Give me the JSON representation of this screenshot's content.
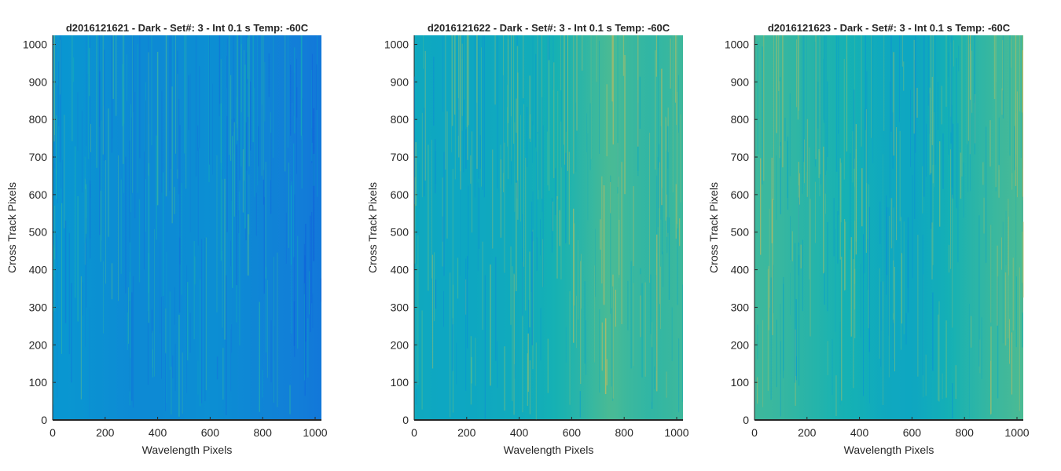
{
  "figure": {
    "background": "#ffffff"
  },
  "chart_data": [
    {
      "type": "heatmap",
      "title": "d2016121621 - Dark - Set#: 3 - Int 0.1 s Temp: -60C",
      "xlabel": "Wavelength Pixels",
      "ylabel": "Cross Track Pixels",
      "xlim": [
        0,
        1024
      ],
      "ylim": [
        0,
        1024
      ],
      "xticks": [
        0,
        200,
        400,
        600,
        800,
        1000
      ],
      "yticks": [
        0,
        100,
        200,
        300,
        400,
        500,
        600,
        700,
        800,
        900,
        1000
      ],
      "colormap": "parula",
      "column_profile": {
        "x": [
          0,
          100,
          200,
          300,
          400,
          500,
          600,
          700,
          800,
          900,
          1024
        ],
        "level": [
          0.38,
          0.37,
          0.35,
          0.33,
          0.33,
          0.34,
          0.35,
          0.33,
          0.31,
          0.29,
          0.26
        ]
      }
    },
    {
      "type": "heatmap",
      "title": "d2016121622 - Dark - Set#: 3 - Int 0.1 s Temp: -60C",
      "xlabel": "Wavelength Pixels",
      "ylabel": "Cross Track Pixels",
      "xlim": [
        0,
        1024
      ],
      "ylim": [
        0,
        1024
      ],
      "xticks": [
        0,
        200,
        400,
        600,
        800,
        1000
      ],
      "yticks": [
        0,
        100,
        200,
        300,
        400,
        500,
        600,
        700,
        800,
        900,
        1000
      ],
      "colormap": "parula",
      "column_profile": {
        "x": [
          0,
          100,
          200,
          300,
          400,
          500,
          600,
          700,
          750,
          800,
          900,
          1024
        ],
        "level": [
          0.46,
          0.45,
          0.45,
          0.46,
          0.47,
          0.49,
          0.52,
          0.56,
          0.58,
          0.56,
          0.54,
          0.56
        ]
      }
    },
    {
      "type": "heatmap",
      "title": "d2016121623 - Dark - Set#: 3 - Int 0.1 s Temp: -60C",
      "xlabel": "Wavelength Pixels",
      "ylabel": "Cross Track Pixels",
      "xlim": [
        0,
        1024
      ],
      "ylim": [
        0,
        1024
      ],
      "xticks": [
        0,
        200,
        400,
        600,
        800,
        1000
      ],
      "yticks": [
        0,
        100,
        200,
        300,
        400,
        500,
        600,
        700,
        800,
        900,
        1000
      ],
      "colormap": "parula",
      "column_profile": {
        "x": [
          0,
          100,
          200,
          300,
          400,
          500,
          600,
          700,
          800,
          900,
          1024
        ],
        "level": [
          0.56,
          0.55,
          0.53,
          0.51,
          0.49,
          0.46,
          0.45,
          0.48,
          0.52,
          0.55,
          0.58
        ]
      }
    }
  ]
}
